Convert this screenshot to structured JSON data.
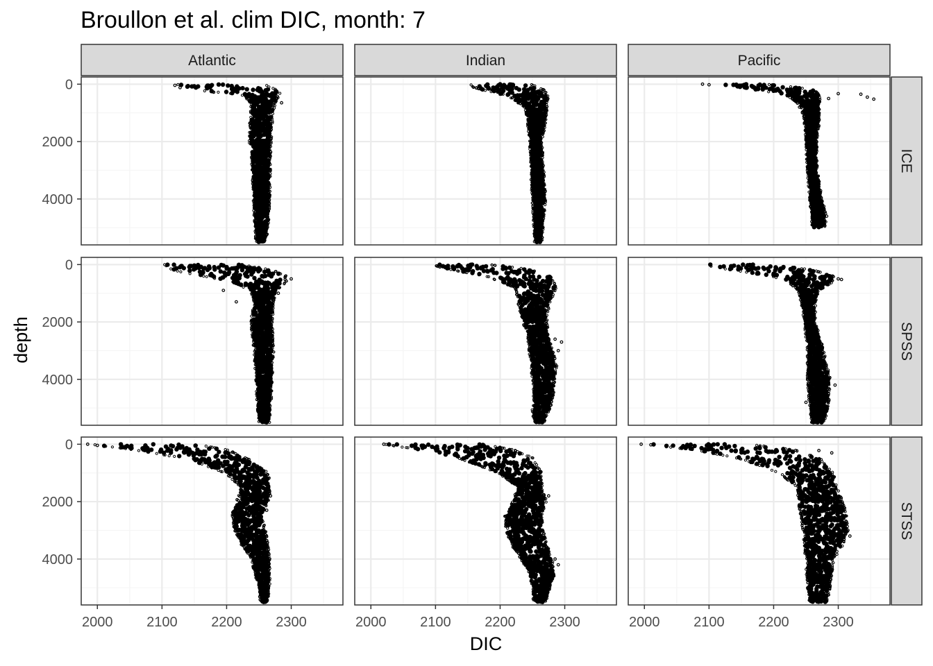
{
  "chart_data": {
    "type": "scatter",
    "title": "Broullon et al. clim DIC, month: 7",
    "xlabel": "DIC",
    "ylabel": "depth",
    "xlim": [
      1975,
      2380
    ],
    "ylim": [
      -250,
      5600
    ],
    "y_reversed": true,
    "x_ticks": [
      2000,
      2100,
      2200,
      2300
    ],
    "y_ticks": [
      0,
      2000,
      4000
    ],
    "grid": true,
    "colors": {
      "points": "#000000",
      "strip_fill": "#d9d9d9",
      "grid_major": "#ebebeb",
      "grid_minor": "#f5f5f5",
      "border": "#333333"
    },
    "facet_cols": [
      "Atlantic",
      "Indian",
      "Pacific"
    ],
    "facet_rows": [
      "ICE",
      "SPSS",
      "STSS"
    ],
    "panels": [
      {
        "col": "Atlantic",
        "row": "ICE",
        "profile": [
          [
            0,
            2125,
            2255
          ],
          [
            100,
            2135,
            2265
          ],
          [
            200,
            2150,
            2275
          ],
          [
            300,
            2200,
            2280
          ],
          [
            400,
            2230,
            2278
          ],
          [
            700,
            2240,
            2272
          ],
          [
            1000,
            2240,
            2270
          ],
          [
            1500,
            2238,
            2268
          ],
          [
            2000,
            2238,
            2266
          ],
          [
            3000,
            2242,
            2265
          ],
          [
            4000,
            2244,
            2264
          ],
          [
            5000,
            2246,
            2262
          ],
          [
            5500,
            2248,
            2258
          ]
        ],
        "outliers": [
          [
            2120,
            40
          ],
          [
            2128,
            120
          ],
          [
            2285,
            650
          ],
          [
            2270,
            800
          ],
          [
            2180,
            280
          ],
          [
            2238,
            1250
          ]
        ]
      },
      {
        "col": "Indian",
        "row": "ICE",
        "profile": [
          [
            0,
            2155,
            2245
          ],
          [
            100,
            2160,
            2258
          ],
          [
            200,
            2175,
            2265
          ],
          [
            400,
            2215,
            2272
          ],
          [
            800,
            2240,
            2270
          ],
          [
            1300,
            2245,
            2268
          ],
          [
            2000,
            2248,
            2262
          ],
          [
            3000,
            2250,
            2265
          ],
          [
            4000,
            2252,
            2268
          ],
          [
            5000,
            2255,
            2264
          ],
          [
            5500,
            2256,
            2262
          ]
        ],
        "outliers": [
          [
            2200,
            350
          ],
          [
            2228,
            650
          ],
          [
            2268,
            1100
          ],
          [
            2262,
            4500
          ],
          [
            2258,
            5200
          ]
        ]
      },
      {
        "col": "Pacific",
        "row": "ICE",
        "profile": [
          [
            0,
            2115,
            2185
          ],
          [
            100,
            2140,
            2230
          ],
          [
            200,
            2180,
            2260
          ],
          [
            400,
            2225,
            2270
          ],
          [
            800,
            2245,
            2268
          ],
          [
            1300,
            2250,
            2268
          ],
          [
            2000,
            2252,
            2264
          ],
          [
            3000,
            2255,
            2265
          ],
          [
            4000,
            2258,
            2272
          ],
          [
            4500,
            2260,
            2278
          ],
          [
            5000,
            2262,
            2278
          ]
        ],
        "outliers": [
          [
            2090,
            0
          ],
          [
            2100,
            20
          ],
          [
            2335,
            350
          ],
          [
            2355,
            520
          ],
          [
            2345,
            450
          ],
          [
            2300,
            330
          ],
          [
            2285,
            500
          ],
          [
            2270,
            600
          ],
          [
            2240,
            800
          ],
          [
            2282,
            4600
          ]
        ]
      },
      {
        "col": "Atlantic",
        "row": "SPSS",
        "profile": [
          [
            0,
            2105,
            2220
          ],
          [
            100,
            2110,
            2245
          ],
          [
            200,
            2120,
            2270
          ],
          [
            400,
            2165,
            2290
          ],
          [
            600,
            2210,
            2290
          ],
          [
            900,
            2240,
            2275
          ],
          [
            1300,
            2245,
            2270
          ],
          [
            2000,
            2240,
            2268
          ],
          [
            3000,
            2245,
            2270
          ],
          [
            4000,
            2248,
            2268
          ],
          [
            5000,
            2250,
            2266
          ],
          [
            5500,
            2252,
            2264
          ]
        ],
        "outliers": [
          [
            2300,
            500
          ],
          [
            2195,
            900
          ],
          [
            2215,
            1300
          ],
          [
            2280,
            1000
          ],
          [
            2268,
            2800
          ]
        ]
      },
      {
        "col": "Indian",
        "row": "SPSS",
        "profile": [
          [
            0,
            2100,
            2180
          ],
          [
            100,
            2108,
            2220
          ],
          [
            200,
            2130,
            2250
          ],
          [
            400,
            2180,
            2275
          ],
          [
            800,
            2225,
            2285
          ],
          [
            1300,
            2230,
            2275
          ],
          [
            1800,
            2235,
            2270
          ],
          [
            2500,
            2245,
            2272
          ],
          [
            3500,
            2250,
            2285
          ],
          [
            4500,
            2255,
            2280
          ],
          [
            5000,
            2252,
            2275
          ],
          [
            5500,
            2255,
            2265
          ]
        ],
        "outliers": [
          [
            2295,
            2700
          ],
          [
            2290,
            3000
          ],
          [
            2285,
            2600
          ],
          [
            2262,
            5500
          ],
          [
            2245,
            2000
          ]
        ]
      },
      {
        "col": "Pacific",
        "row": "SPSS",
        "profile": [
          [
            0,
            2100,
            2185
          ],
          [
            100,
            2110,
            2230
          ],
          [
            200,
            2140,
            2260
          ],
          [
            400,
            2200,
            2290
          ],
          [
            600,
            2225,
            2290
          ],
          [
            900,
            2240,
            2268
          ],
          [
            1300,
            2245,
            2262
          ],
          [
            2000,
            2250,
            2262
          ],
          [
            3000,
            2255,
            2275
          ],
          [
            4000,
            2255,
            2285
          ],
          [
            5000,
            2258,
            2282
          ],
          [
            5500,
            2260,
            2275
          ]
        ],
        "outliers": [
          [
            2295,
            4200
          ],
          [
            2300,
            500
          ],
          [
            2305,
            520
          ],
          [
            2250,
            4800
          ],
          [
            2265,
            5500
          ]
        ]
      },
      {
        "col": "Atlantic",
        "row": "STSS",
        "profile": [
          [
            0,
            1990,
            2150
          ],
          [
            200,
            2060,
            2200
          ],
          [
            500,
            2140,
            2230
          ],
          [
            1000,
            2200,
            2262
          ],
          [
            1500,
            2225,
            2265
          ],
          [
            2000,
            2218,
            2262
          ],
          [
            2500,
            2210,
            2252
          ],
          [
            3000,
            2215,
            2258
          ],
          [
            3500,
            2225,
            2262
          ],
          [
            4000,
            2240,
            2264
          ],
          [
            5000,
            2252,
            2264
          ],
          [
            5500,
            2255,
            2262
          ]
        ],
        "outliers": [
          [
            1985,
            0
          ],
          [
            2000,
            40
          ],
          [
            2268,
            1800
          ],
          [
            2262,
            2300
          ],
          [
            2265,
            1500
          ]
        ]
      },
      {
        "col": "Indian",
        "row": "STSS",
        "profile": [
          [
            0,
            2022,
            2170
          ],
          [
            200,
            2080,
            2220
          ],
          [
            500,
            2140,
            2250
          ],
          [
            1000,
            2200,
            2262
          ],
          [
            1500,
            2230,
            2262
          ],
          [
            2000,
            2222,
            2270
          ],
          [
            2500,
            2210,
            2262
          ],
          [
            3000,
            2212,
            2264
          ],
          [
            3500,
            2220,
            2270
          ],
          [
            4000,
            2235,
            2278
          ],
          [
            4500,
            2248,
            2282
          ],
          [
            5000,
            2252,
            2275
          ],
          [
            5500,
            2254,
            2268
          ]
        ],
        "outliers": [
          [
            2020,
            0
          ],
          [
            2285,
            4000
          ],
          [
            2290,
            4200
          ],
          [
            2282,
            4500
          ],
          [
            2275,
            1800
          ]
        ]
      },
      {
        "col": "Pacific",
        "row": "STSS",
        "profile": [
          [
            0,
            2000,
            2160
          ],
          [
            200,
            2080,
            2230
          ],
          [
            500,
            2150,
            2270
          ],
          [
            1000,
            2210,
            2290
          ],
          [
            1500,
            2240,
            2295
          ],
          [
            2000,
            2240,
            2305
          ],
          [
            2500,
            2245,
            2310
          ],
          [
            3000,
            2248,
            2312
          ],
          [
            3500,
            2250,
            2305
          ],
          [
            4000,
            2252,
            2290
          ],
          [
            5000,
            2255,
            2285
          ],
          [
            5500,
            2258,
            2280
          ]
        ],
        "outliers": [
          [
            1995,
            0
          ],
          [
            2010,
            20
          ],
          [
            2230,
            250
          ],
          [
            2270,
            220
          ],
          [
            2290,
            300
          ],
          [
            2215,
            150
          ],
          [
            2315,
            3000
          ],
          [
            2318,
            3200
          ]
        ]
      }
    ]
  }
}
